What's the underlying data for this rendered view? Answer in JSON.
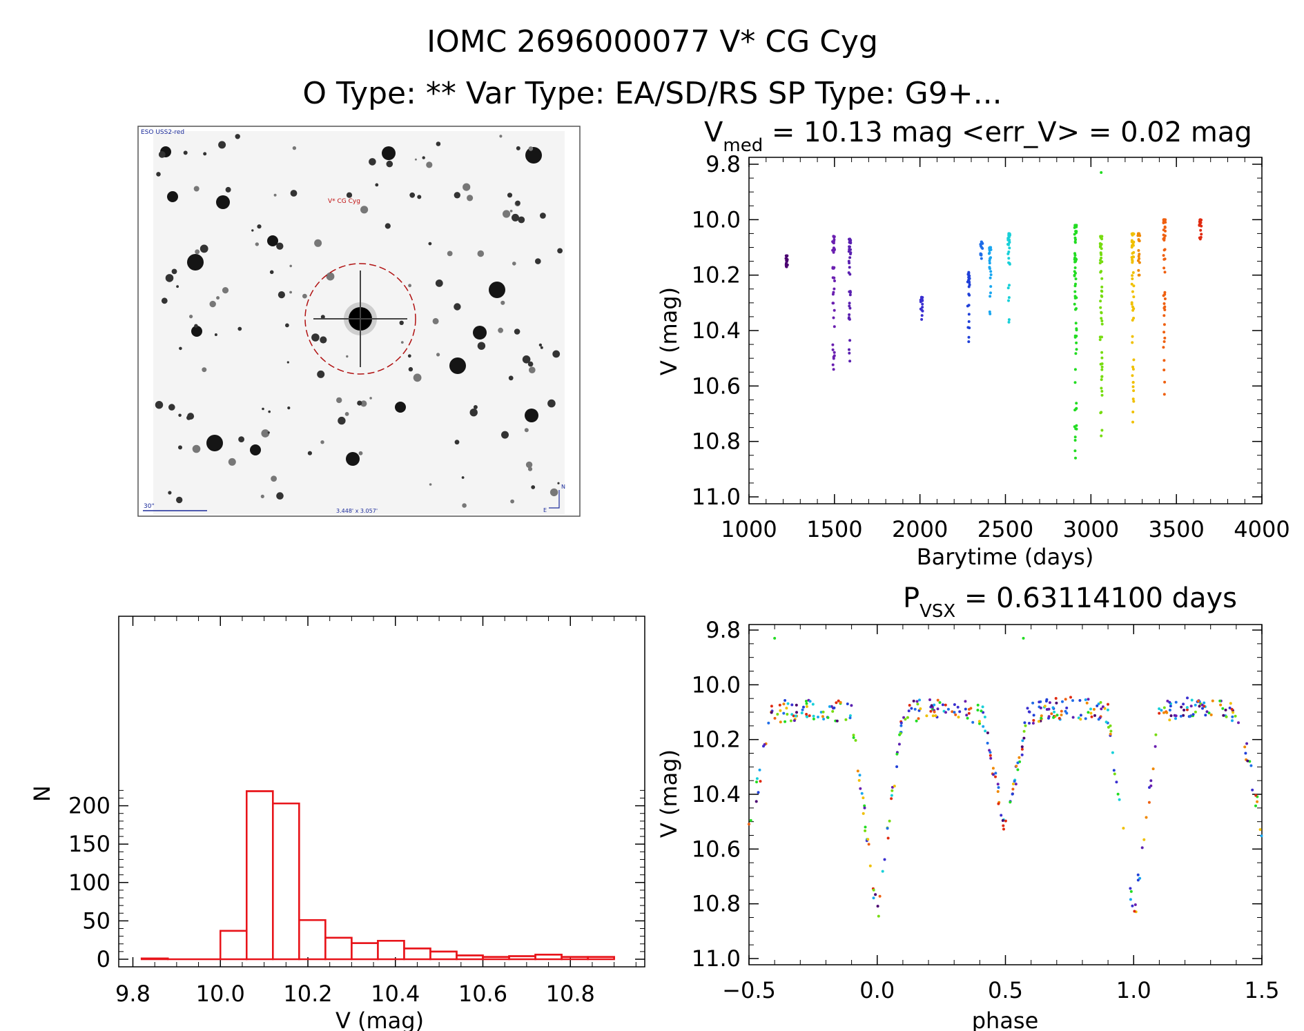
{
  "header": {
    "title": "IOMC 2696000077   V* CG Cyg",
    "subtitle": "O Type: **  Var Type: EA/SD/RS  SP Type: G9+..."
  },
  "finder": {
    "survey_label": "ESO USS2-red",
    "target_label": "V* CG Cyg",
    "scale_label": "30\"",
    "fov_label": "3.448' x 3.057'",
    "north_label": "N",
    "east_label": "E"
  },
  "chart_data": [
    {
      "id": "lightcurve_time",
      "type": "scatter",
      "title_parts": {
        "v": "V",
        "sub": "med",
        "rest": " = 10.13 mag <err_V> = 0.02 mag"
      },
      "xlabel": "Barytime (days)",
      "ylabel": "V (mag)",
      "xlim": [
        1000,
        4000
      ],
      "ylim": [
        9.8,
        11.0
      ],
      "y_inverted": true,
      "xticks": [
        1000,
        1500,
        2000,
        2500,
        3000,
        3500,
        4000
      ],
      "xtick_labels": [
        "1000",
        "1500",
        "2000",
        "2500",
        "3000",
        "3500",
        "4000"
      ],
      "yticks": [
        9.8,
        10.0,
        10.2,
        10.4,
        10.6,
        10.8,
        11.0
      ],
      "ytick_labels": [
        "9.8",
        "10.0",
        "10.2",
        "10.4",
        "10.6",
        "10.8",
        "11.0"
      ],
      "grid": false,
      "groups": [
        {
          "time": 1220,
          "vmin": 10.13,
          "vmax": 10.17,
          "color": "#4a0070"
        },
        {
          "time": 1495,
          "vmin": 10.06,
          "vmax": 10.54,
          "color": "#6a1fb0"
        },
        {
          "time": 1590,
          "vmin": 10.07,
          "vmax": 10.51,
          "color": "#5a20b0"
        },
        {
          "time": 2010,
          "vmin": 10.28,
          "vmax": 10.36,
          "color": "#3a2fd0"
        },
        {
          "time": 2285,
          "vmin": 10.19,
          "vmax": 10.44,
          "color": "#2040d8"
        },
        {
          "time": 2360,
          "vmin": 10.08,
          "vmax": 10.14,
          "color": "#1f6de8"
        },
        {
          "time": 2410,
          "vmin": 10.1,
          "vmax": 10.34,
          "color": "#18a6f0"
        },
        {
          "time": 2520,
          "vmin": 10.05,
          "vmax": 10.37,
          "color": "#18d0d8"
        },
        {
          "time": 2910,
          "vmin": 10.02,
          "vmax": 10.86,
          "color": "#22dc22"
        },
        {
          "time": 3060,
          "vmin": 10.06,
          "vmax": 10.78,
          "color": "#76dc10"
        },
        {
          "time": 3245,
          "vmin": 10.05,
          "vmax": 10.73,
          "color": "#f0c000"
        },
        {
          "time": 3280,
          "vmin": 10.05,
          "vmax": 10.2,
          "color": "#f08800"
        },
        {
          "time": 3430,
          "vmin": 10.0,
          "vmax": 10.63,
          "color": "#ef6010"
        },
        {
          "time": 3640,
          "vmin": 10.0,
          "vmax": 10.07,
          "color": "#e02a10"
        }
      ],
      "outlier": {
        "time": 3060,
        "v": 9.83,
        "color": "#22dc22"
      }
    },
    {
      "id": "lightcurve_phase",
      "type": "scatter",
      "title_parts": {
        "v": "P",
        "sub": "VSX",
        "rest": " = 0.63114100 days"
      },
      "xlabel": "phase",
      "ylabel": "V (mag)",
      "xlim": [
        -0.5,
        1.5
      ],
      "ylim": [
        9.8,
        11.0
      ],
      "y_inverted": true,
      "xticks": [
        -0.5,
        0.0,
        0.5,
        1.0,
        1.5
      ],
      "xtick_labels": [
        "−0.5",
        "0.0",
        "0.5",
        "1.0",
        "1.5"
      ],
      "yticks": [
        9.8,
        10.0,
        10.2,
        10.4,
        10.6,
        10.8,
        11.0
      ],
      "ytick_labels": [
        "9.8",
        "10.0",
        "10.2",
        "10.4",
        "10.6",
        "10.8",
        "11.0"
      ],
      "grid": false,
      "period_days": 0.631141,
      "eclipse_depth_primary": 10.86,
      "eclipse_depth_secondary": 10.53,
      "max_brightness": 10.1
    },
    {
      "id": "histogram",
      "type": "bar",
      "title": "",
      "xlabel": "V (mag)",
      "ylabel": "N",
      "xlim": [
        9.78,
        10.96
      ],
      "ylim": [
        0,
        230
      ],
      "bin_width": 0.06,
      "bin_left_edges": [
        9.82,
        9.88,
        9.94,
        10.0,
        10.06,
        10.12,
        10.18,
        10.24,
        10.3,
        10.36,
        10.42,
        10.48,
        10.54,
        10.6,
        10.66,
        10.72,
        10.78,
        10.84
      ],
      "values": [
        1,
        0,
        0,
        37,
        219,
        203,
        51,
        28,
        21,
        24,
        14,
        10,
        5,
        3,
        4,
        6,
        3,
        3
      ],
      "xticks": [
        9.8,
        10.0,
        10.2,
        10.4,
        10.6,
        10.8
      ],
      "xtick_labels": [
        "9.8",
        "10.0",
        "10.2",
        "10.4",
        "10.6",
        "10.8"
      ],
      "yticks": [
        0,
        50,
        100,
        150,
        200
      ],
      "ytick_labels": [
        "0",
        "50",
        "100",
        "150",
        "200"
      ],
      "grid": false,
      "bar_color": "#e8141a"
    }
  ]
}
